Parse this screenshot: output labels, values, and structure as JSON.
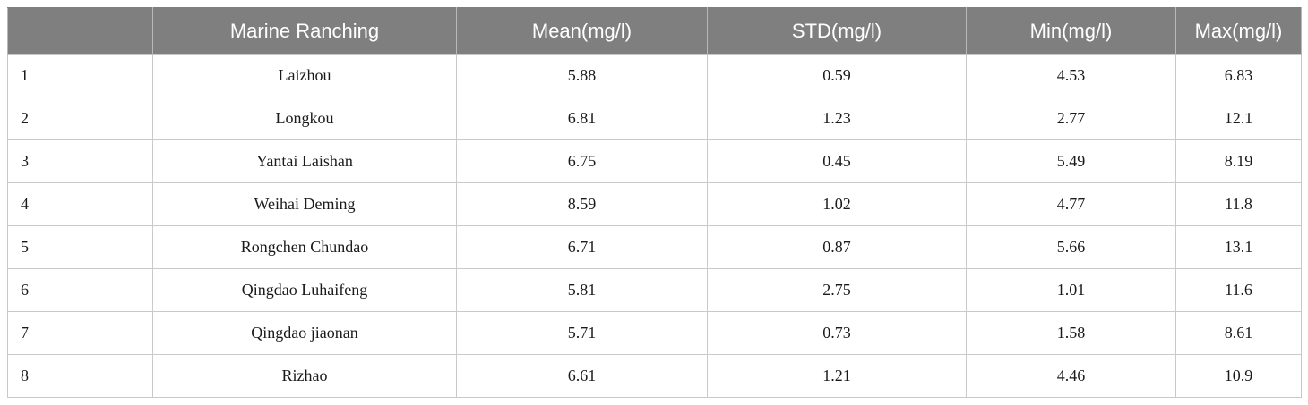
{
  "table": {
    "headers": [
      "",
      "Marine Ranching",
      "Mean(mg/l)",
      "STD(mg/l)",
      "Min(mg/l)",
      "Max(mg/l)"
    ],
    "rows": [
      [
        "1",
        "Laizhou",
        "5.88",
        "0.59",
        "4.53",
        "6.83"
      ],
      [
        "2",
        "Longkou",
        "6.81",
        "1.23",
        "2.77",
        "12.1"
      ],
      [
        "3",
        "Yantai Laishan",
        "6.75",
        "0.45",
        "5.49",
        "8.19"
      ],
      [
        "4",
        "Weihai Deming",
        "8.59",
        "1.02",
        "4.77",
        "11.8"
      ],
      [
        "5",
        "Rongchen Chundao",
        "6.71",
        "0.87",
        "5.66",
        "13.1"
      ],
      [
        "6",
        "Qingdao Luhaifeng",
        "5.81",
        "2.75",
        "1.01",
        "11.6"
      ],
      [
        "7",
        "Qingdao jiaonan",
        "5.71",
        "0.73",
        "1.58",
        "8.61"
      ],
      [
        "8",
        "Rizhao",
        "6.61",
        "1.21",
        "4.46",
        "10.9"
      ]
    ]
  }
}
